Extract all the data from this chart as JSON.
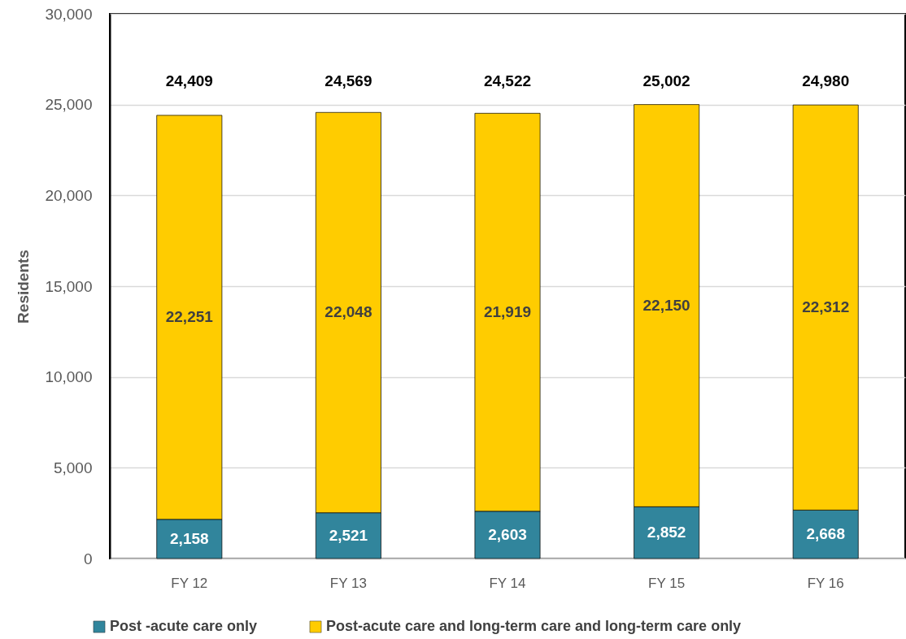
{
  "chart_data": {
    "type": "bar",
    "stacked": true,
    "ylabel": "Residents",
    "categories": [
      "FY 12",
      "FY 13",
      "FY 14",
      "FY 15",
      "FY 16"
    ],
    "series": [
      {
        "name": "Post -acute care only",
        "color": "#31859c",
        "values": [
          2158,
          2521,
          2603,
          2852,
          2668
        ],
        "value_labels": [
          "2,158",
          "2,521",
          "2,603",
          "2,852",
          "2,668"
        ]
      },
      {
        "name": "Post-acute care and long-term care and long-term care only",
        "color": "#ffcc00",
        "values": [
          22251,
          22048,
          21919,
          22150,
          22312
        ],
        "value_labels": [
          "22,251",
          "22,048",
          "21,919",
          "22,150",
          "22,312"
        ]
      }
    ],
    "totals": [
      "24,409",
      "24,569",
      "24,522",
      "25,002",
      "24,980"
    ],
    "ylim": [
      0,
      30000
    ],
    "yticks": [
      0,
      {
        "value": 5000,
        "label": "5,000"
      },
      {
        "value": 10000,
        "label": "10,000"
      },
      {
        "value": 15000,
        "label": "15,000"
      },
      {
        "value": 20000,
        "label": "20,000"
      },
      {
        "value": 25000,
        "label": "25,000"
      },
      {
        "value": 30000,
        "label": "30,000"
      }
    ],
    "grid": "y",
    "legend": "bottom"
  }
}
